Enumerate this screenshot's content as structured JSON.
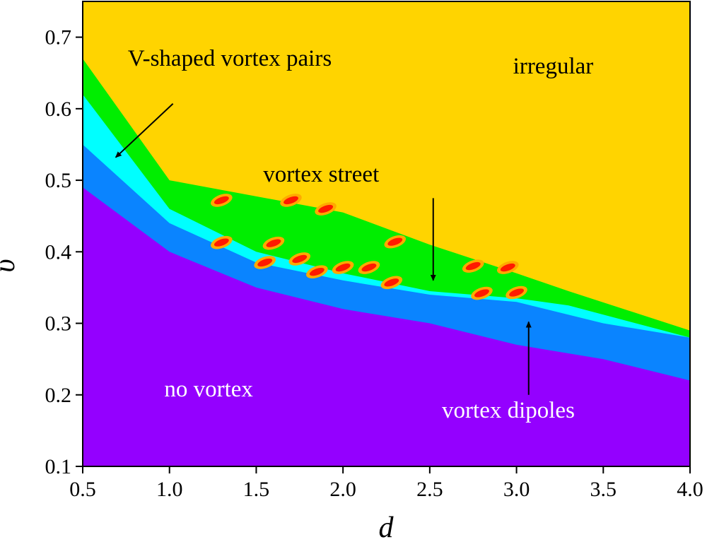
{
  "chart_data": {
    "type": "heatmap",
    "xlabel": "d",
    "ylabel": "υ",
    "xlim": [
      0.5,
      4.0
    ],
    "ylim": [
      0.1,
      0.75
    ],
    "xticks": [
      "0.5",
      "1.0",
      "1.5",
      "2.0",
      "2.5",
      "3.0",
      "3.5",
      "4.0"
    ],
    "yticks": [
      "0.1",
      "0.2",
      "0.3",
      "0.4",
      "0.5",
      "0.6",
      "0.7"
    ],
    "colors": {
      "no_vortex": "#9400ff",
      "vortex_dipoles": "#0a84ff",
      "v_shaped_pairs": "#00ffff",
      "vortex_street": "#00ee00",
      "irregular": "#ffd400",
      "spots": "#ff1a00"
    },
    "regions": [
      {
        "key": "irregular",
        "label": "irregular",
        "color": "#ffd400",
        "boundary_lower": [
          [
            0.5,
            0.67
          ],
          [
            1.0,
            0.5
          ],
          [
            2.0,
            0.455
          ],
          [
            2.5,
            0.41
          ],
          [
            3.0,
            0.37
          ],
          [
            3.3,
            0.345
          ],
          [
            4.0,
            0.29
          ]
        ]
      },
      {
        "key": "vortex_street",
        "label": "vortex street",
        "color": "#00ee00",
        "boundary_lower": [
          [
            0.5,
            0.62
          ],
          [
            1.0,
            0.46
          ],
          [
            1.5,
            0.4
          ],
          [
            2.0,
            0.37
          ],
          [
            2.5,
            0.345
          ],
          [
            3.0,
            0.335
          ],
          [
            3.3,
            0.325
          ],
          [
            4.0,
            0.28
          ]
        ]
      },
      {
        "key": "v_shaped_pairs",
        "label": "V-shaped vortex pairs",
        "color": "#00ffff",
        "boundary_lower": [
          [
            0.5,
            0.55
          ],
          [
            1.0,
            0.44
          ],
          [
            1.5,
            0.385
          ],
          [
            2.0,
            0.36
          ],
          [
            2.5,
            0.34
          ],
          [
            3.0,
            0.33
          ],
          [
            3.5,
            0.3
          ],
          [
            4.0,
            0.28
          ]
        ]
      },
      {
        "key": "vortex_dipoles",
        "label": "vortex dipoles",
        "color": "#0a84ff",
        "boundary_lower": [
          [
            0.5,
            0.49
          ],
          [
            1.0,
            0.4
          ],
          [
            1.5,
            0.35
          ],
          [
            2.0,
            0.32
          ],
          [
            2.5,
            0.3
          ],
          [
            3.0,
            0.27
          ],
          [
            3.5,
            0.25
          ],
          [
            4.0,
            0.22
          ]
        ]
      },
      {
        "key": "no_vortex",
        "label": "no vortex",
        "color": "#9400ff"
      }
    ],
    "annotations": [
      {
        "key": "v_shaped",
        "text": "V-shaped vortex pairs",
        "text_at": [
          0.76,
          0.66
        ],
        "arrow_from": [
          1.02,
          0.607
        ],
        "arrow_to": [
          0.69,
          0.532
        ],
        "text_color": "#000000"
      },
      {
        "key": "street",
        "text": "vortex street",
        "text_at": [
          1.54,
          0.498
        ],
        "arrow_from": [
          2.52,
          0.475
        ],
        "arrow_to": [
          2.52,
          0.36
        ],
        "text_color": "#000000"
      },
      {
        "key": "irregular",
        "text": "irregular",
        "text_at": [
          2.98,
          0.649
        ],
        "text_color": "#000000"
      },
      {
        "key": "no_vortex",
        "text": "no vortex",
        "text_at": [
          0.97,
          0.198
        ],
        "text_color": "#ffffff"
      },
      {
        "key": "dipoles",
        "text": "vortex dipoles",
        "text_at": [
          2.57,
          0.168
        ],
        "arrow_from": [
          3.07,
          0.2
        ],
        "arrow_to": [
          3.07,
          0.302
        ],
        "text_color": "#ffffff"
      }
    ],
    "spots": [
      [
        1.3,
        0.472
      ],
      [
        1.7,
        0.472
      ],
      [
        1.9,
        0.46
      ],
      [
        2.3,
        0.414
      ],
      [
        1.3,
        0.413
      ],
      [
        1.6,
        0.412
      ],
      [
        1.75,
        0.39
      ],
      [
        1.55,
        0.385
      ],
      [
        1.85,
        0.372
      ],
      [
        2.0,
        0.378
      ],
      [
        2.15,
        0.378
      ],
      [
        2.28,
        0.357
      ],
      [
        2.75,
        0.38
      ],
      [
        2.95,
        0.378
      ],
      [
        2.8,
        0.342
      ],
      [
        3.0,
        0.343
      ]
    ]
  }
}
